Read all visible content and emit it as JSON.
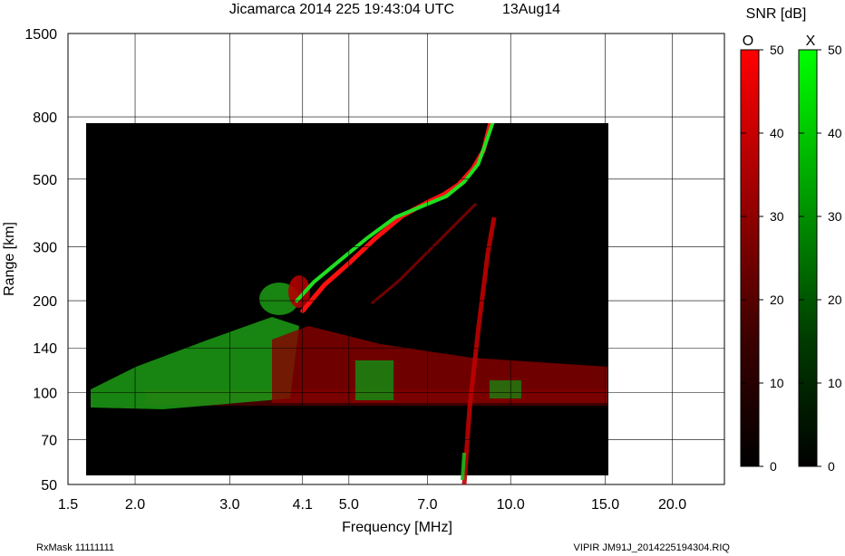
{
  "chart_data": {
    "type": "heatmap",
    "title": "Jicamarca 2014 225 19:43:04 UTC",
    "date_label": "13Aug14",
    "xlabel": "Frequency [MHz]",
    "ylabel": "Range [km]",
    "x_scale": "log",
    "y_scale": "log",
    "xlim": [
      1.5,
      25.0
    ],
    "ylim": [
      50,
      1500
    ],
    "x_ticks": [
      1.5,
      2.0,
      3.0,
      4.1,
      5.0,
      7.0,
      10.0,
      15.0,
      20.0
    ],
    "x_tick_labels": [
      "1.5",
      "2.0",
      "3.0",
      "4.1",
      "5.0",
      "7.0",
      "10.0",
      "15.0",
      "20.0"
    ],
    "y_ticks": [
      50,
      70,
      100,
      140,
      200,
      300,
      500,
      800,
      1500
    ],
    "y_tick_labels": [
      "50",
      "70",
      "100",
      "140",
      "200",
      "300",
      "500",
      "800",
      "1500"
    ],
    "grid": true,
    "data_extent": {
      "freq": [
        1.6,
        15.0
      ],
      "range": [
        55,
        780
      ]
    },
    "colorbar": {
      "title": "SNR [dB]",
      "min": 0,
      "max": 50,
      "ticks": [
        0,
        10,
        20,
        30,
        40,
        50
      ],
      "tick_labels": [
        "0",
        "10",
        "20",
        "30",
        "40",
        "50"
      ],
      "o_label": "O",
      "x_label": "X",
      "o_color": "#ff0000",
      "x_color": "#00ff00"
    },
    "series": [
      {
        "name": "O",
        "color": "#ff0000",
        "freq": [
          4.1,
          4.5,
          5.0,
          5.6,
          6.3,
          7.0,
          7.5,
          8.0,
          8.5,
          8.9,
          9.2
        ],
        "range": [
          185,
          225,
          265,
          320,
          380,
          420,
          445,
          480,
          540,
          620,
          780
        ]
      },
      {
        "name": "X",
        "color": "#00ff00",
        "freq": [
          4.0,
          4.3,
          4.8,
          5.4,
          6.1,
          6.9,
          7.6,
          8.2,
          8.7,
          9.0,
          9.3
        ],
        "range": [
          200,
          230,
          270,
          320,
          375,
          410,
          440,
          490,
          560,
          660,
          780
        ]
      }
    ]
  },
  "footer": {
    "rxmask": "RxMask 11111111",
    "file": "VIPIR  JM91J_2014225194304.RIQ"
  }
}
